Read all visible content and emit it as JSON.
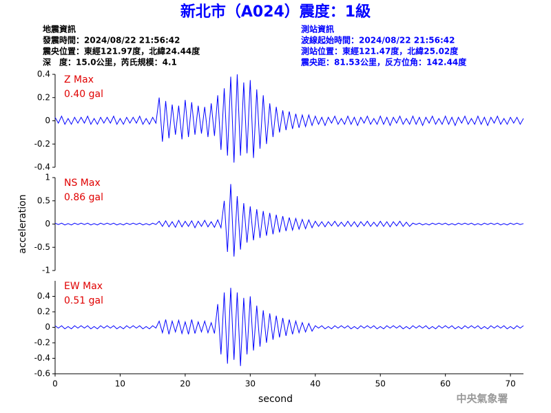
{
  "header": {
    "title": "新北市（A024）震度：1級",
    "left": [
      "地震資訊",
      "發震時間：2024/08/22 21:56:42",
      "震央位置：東經121.97度，北緯24.44度",
      "深　度：15.0公里，芮氏規模：4.1"
    ],
    "right": [
      "測站資訊",
      "波線起始時間：2024/08/22 21:56:42",
      "測站位置：東經121.47度，北緯25.02度",
      "震央距：81.53公里，反方位角：142.44度"
    ],
    "footer": "中央氣象署"
  },
  "chart_data": [
    {
      "type": "line",
      "annotation": "0.40 gal",
      "xlim": [
        0,
        72
      ],
      "ylim": [
        -0.4,
        0.4
      ],
      "yticks": [
        -0.4,
        -0.2,
        0,
        0.2,
        0.4
      ],
      "x": [
        0,
        0.5,
        1,
        1.5,
        2,
        2.5,
        3,
        3.5,
        4,
        4.5,
        5,
        5.5,
        6,
        6.5,
        7,
        7.5,
        8,
        8.5,
        9,
        9.5,
        10,
        10.5,
        11,
        11.5,
        12,
        12.5,
        13,
        13.5,
        14,
        14.5,
        15,
        15.5,
        16,
        16.5,
        17,
        17.5,
        18,
        18.5,
        19,
        19.5,
        20,
        20.5,
        21,
        21.5,
        22,
        22.5,
        23,
        23.5,
        24,
        24.5,
        25,
        25.5,
        26,
        26.5,
        27,
        27.5,
        28,
        28.5,
        29,
        29.5,
        30,
        30.5,
        31,
        31.5,
        32,
        32.5,
        33,
        33.5,
        34,
        34.5,
        35,
        35.5,
        36,
        36.5,
        37,
        37.5,
        38,
        38.5,
        39,
        39.5,
        40,
        40.5,
        41,
        41.5,
        42,
        42.5,
        43,
        43.5,
        44,
        44.5,
        45,
        45.5,
        46,
        46.5,
        47,
        47.5,
        48,
        48.5,
        49,
        49.5,
        50,
        50.5,
        51,
        51.5,
        52,
        52.5,
        53,
        53.5,
        54,
        54.5,
        55,
        55.5,
        56,
        56.5,
        57,
        57.5,
        58,
        58.5,
        59,
        59.5,
        60,
        60.5,
        61,
        61.5,
        62,
        62.5,
        63,
        63.5,
        64,
        64.5,
        65,
        65.5,
        66,
        66.5,
        67,
        67.5,
        68,
        68.5,
        69,
        69.5,
        70,
        70.5,
        71,
        71.5,
        72
      ],
      "series": [
        {
          "name": "Z Max",
          "color": "#0000ff",
          "values": [
            0.03,
            -0.02,
            0.04,
            -0.03,
            0.02,
            -0.03,
            0.03,
            -0.02,
            0.03,
            -0.02,
            0.04,
            -0.03,
            0.02,
            -0.03,
            0.03,
            -0.02,
            0.03,
            -0.02,
            0.04,
            -0.03,
            0.02,
            -0.03,
            0.03,
            -0.02,
            0.03,
            -0.02,
            0.04,
            -0.03,
            0.02,
            -0.03,
            0.03,
            -0.02,
            0.2,
            -0.18,
            0.17,
            -0.15,
            0.14,
            -0.12,
            0.13,
            -0.16,
            0.18,
            -0.14,
            0.16,
            -0.12,
            0.13,
            -0.11,
            0.12,
            -0.14,
            0.15,
            -0.13,
            0.22,
            -0.25,
            0.28,
            -0.3,
            0.38,
            -0.36,
            0.4,
            -0.3,
            0.33,
            -0.28,
            0.35,
            -0.32,
            0.27,
            -0.24,
            0.22,
            -0.2,
            0.15,
            -0.14,
            0.12,
            -0.1,
            0.09,
            -0.08,
            0.08,
            -0.07,
            0.06,
            -0.06,
            0.05,
            -0.05,
            0.05,
            -0.04,
            0.04,
            -0.03,
            0.03,
            -0.04,
            0.03,
            -0.02,
            0.04,
            -0.03,
            0.02,
            -0.03,
            0.04,
            -0.03,
            0.03,
            -0.04,
            0.03,
            -0.02,
            0.04,
            -0.03,
            0.02,
            -0.03,
            0.04,
            -0.03,
            0.03,
            -0.04,
            0.03,
            -0.02,
            0.04,
            -0.03,
            0.02,
            -0.03,
            0.04,
            -0.03,
            0.03,
            -0.04,
            0.03,
            -0.02,
            0.04,
            -0.03,
            0.02,
            -0.03,
            0.04,
            -0.03,
            0.03,
            -0.04,
            0.03,
            -0.02,
            0.04,
            -0.03,
            0.02,
            -0.03,
            0.04,
            -0.03,
            0.03,
            -0.04,
            0.03,
            -0.02,
            0.04,
            -0.03,
            0.02,
            -0.03,
            0.03,
            -0.02,
            0.03,
            -0.03,
            0.02
          ]
        }
      ]
    },
    {
      "type": "line",
      "annotation": "0.86 gal",
      "ylabel": "acceleration",
      "xlim": [
        0,
        72
      ],
      "ylim": [
        -1,
        1
      ],
      "yticks": [
        -1,
        -0.5,
        0,
        0.5,
        1
      ],
      "x": [
        0,
        0.5,
        1,
        1.5,
        2,
        2.5,
        3,
        3.5,
        4,
        4.5,
        5,
        5.5,
        6,
        6.5,
        7,
        7.5,
        8,
        8.5,
        9,
        9.5,
        10,
        10.5,
        11,
        11.5,
        12,
        12.5,
        13,
        13.5,
        14,
        14.5,
        15,
        15.5,
        16,
        16.5,
        17,
        17.5,
        18,
        18.5,
        19,
        19.5,
        20,
        20.5,
        21,
        21.5,
        22,
        22.5,
        23,
        23.5,
        24,
        24.5,
        25,
        25.5,
        26,
        26.5,
        27,
        27.5,
        28,
        28.5,
        29,
        29.5,
        30,
        30.5,
        31,
        31.5,
        32,
        32.5,
        33,
        33.5,
        34,
        34.5,
        35,
        35.5,
        36,
        36.5,
        37,
        37.5,
        38,
        38.5,
        39,
        39.5,
        40,
        40.5,
        41,
        41.5,
        42,
        42.5,
        43,
        43.5,
        44,
        44.5,
        45,
        45.5,
        46,
        46.5,
        47,
        47.5,
        48,
        48.5,
        49,
        49.5,
        50,
        50.5,
        51,
        51.5,
        52,
        52.5,
        53,
        53.5,
        54,
        54.5,
        55,
        55.5,
        56,
        56.5,
        57,
        57.5,
        58,
        58.5,
        59,
        59.5,
        60,
        60.5,
        61,
        61.5,
        62,
        62.5,
        63,
        63.5,
        64,
        64.5,
        65,
        65.5,
        66,
        66.5,
        67,
        67.5,
        68,
        68.5,
        69,
        69.5,
        70,
        70.5,
        71,
        71.5,
        72
      ],
      "series": [
        {
          "name": "NS Max",
          "color": "#0000ff",
          "values": [
            0.02,
            -0.01,
            0.02,
            -0.02,
            0.01,
            -0.02,
            0.02,
            -0.01,
            0.02,
            -0.01,
            0.02,
            -0.02,
            0.01,
            -0.02,
            0.02,
            -0.01,
            0.02,
            -0.01,
            0.02,
            -0.02,
            0.01,
            -0.02,
            0.02,
            -0.01,
            0.02,
            -0.01,
            0.02,
            -0.02,
            0.01,
            -0.02,
            0.02,
            -0.01,
            0.06,
            -0.05,
            0.07,
            -0.06,
            0.05,
            -0.07,
            0.08,
            -0.06,
            0.06,
            -0.05,
            0.07,
            -0.08,
            0.06,
            -0.05,
            0.08,
            -0.06,
            0.05,
            -0.07,
            0.09,
            -0.08,
            0.5,
            -0.6,
            0.86,
            -0.7,
            0.6,
            -0.55,
            0.45,
            -0.4,
            0.38,
            -0.35,
            0.32,
            -0.3,
            0.28,
            -0.25,
            0.24,
            -0.22,
            0.2,
            -0.18,
            0.17,
            -0.15,
            0.14,
            -0.13,
            0.12,
            -0.11,
            0.1,
            -0.1,
            0.09,
            -0.08,
            0.06,
            -0.05,
            0.05,
            -0.06,
            0.05,
            -0.04,
            0.06,
            -0.05,
            0.04,
            -0.05,
            0.06,
            -0.05,
            0.05,
            -0.06,
            0.05,
            -0.04,
            0.06,
            -0.05,
            0.04,
            -0.05,
            0.06,
            -0.05,
            0.05,
            -0.06,
            0.05,
            -0.04,
            0.06,
            -0.05,
            0.04,
            -0.05,
            0.02,
            -0.01,
            0.02,
            -0.02,
            0.01,
            -0.02,
            0.02,
            -0.01,
            0.02,
            -0.01,
            0.02,
            -0.02,
            0.01,
            -0.02,
            0.02,
            -0.01,
            0.02,
            -0.01,
            0.02,
            -0.02,
            0.01,
            -0.02,
            0.02,
            -0.01,
            0.02,
            -0.01,
            0.02,
            -0.02,
            0.01,
            -0.02,
            0.02,
            -0.01,
            0.02,
            -0.01,
            0.01
          ]
        }
      ]
    },
    {
      "type": "line",
      "annotation": "0.51 gal",
      "xlabel": "second",
      "xlim": [
        0,
        72
      ],
      "xticks": [
        0,
        10,
        20,
        30,
        40,
        50,
        60,
        70
      ],
      "ylim": [
        -0.6,
        0.6
      ],
      "yticks": [
        -0.6,
        -0.4,
        -0.2,
        0,
        0.2,
        0.4
      ],
      "x": [
        0,
        0.5,
        1,
        1.5,
        2,
        2.5,
        3,
        3.5,
        4,
        4.5,
        5,
        5.5,
        6,
        6.5,
        7,
        7.5,
        8,
        8.5,
        9,
        9.5,
        10,
        10.5,
        11,
        11.5,
        12,
        12.5,
        13,
        13.5,
        14,
        14.5,
        15,
        15.5,
        16,
        16.5,
        17,
        17.5,
        18,
        18.5,
        19,
        19.5,
        20,
        20.5,
        21,
        21.5,
        22,
        22.5,
        23,
        23.5,
        24,
        24.5,
        25,
        25.5,
        26,
        26.5,
        27,
        27.5,
        28,
        28.5,
        29,
        29.5,
        30,
        30.5,
        31,
        31.5,
        32,
        32.5,
        33,
        33.5,
        34,
        34.5,
        35,
        35.5,
        36,
        36.5,
        37,
        37.5,
        38,
        38.5,
        39,
        39.5,
        40,
        40.5,
        41,
        41.5,
        42,
        42.5,
        43,
        43.5,
        44,
        44.5,
        45,
        45.5,
        46,
        46.5,
        47,
        47.5,
        48,
        48.5,
        49,
        49.5,
        50,
        50.5,
        51,
        51.5,
        52,
        52.5,
        53,
        53.5,
        54,
        54.5,
        55,
        55.5,
        56,
        56.5,
        57,
        57.5,
        58,
        58.5,
        59,
        59.5,
        60,
        60.5,
        61,
        61.5,
        62,
        62.5,
        63,
        63.5,
        64,
        64.5,
        65,
        65.5,
        66,
        66.5,
        67,
        67.5,
        68,
        68.5,
        69,
        69.5,
        70,
        70.5,
        71,
        71.5,
        72
      ],
      "series": [
        {
          "name": "EW Max",
          "color": "#0000ff",
          "values": [
            0.02,
            -0.01,
            0.02,
            -0.02,
            0.01,
            -0.02,
            0.02,
            -0.01,
            0.02,
            -0.01,
            0.02,
            -0.02,
            0.01,
            -0.02,
            0.02,
            -0.01,
            0.02,
            -0.01,
            0.02,
            -0.02,
            0.01,
            -0.02,
            0.02,
            -0.01,
            0.02,
            -0.01,
            0.02,
            -0.02,
            0.01,
            -0.02,
            0.02,
            -0.01,
            0.08,
            -0.07,
            0.1,
            -0.09,
            0.08,
            -0.06,
            0.09,
            -0.08,
            0.07,
            -0.09,
            0.1,
            -0.08,
            0.07,
            -0.06,
            0.08,
            -0.07,
            0.06,
            -0.08,
            0.3,
            -0.35,
            0.45,
            -0.47,
            0.51,
            -0.42,
            0.45,
            -0.5,
            0.38,
            -0.35,
            0.4,
            -0.3,
            0.28,
            -0.25,
            0.22,
            -0.2,
            0.18,
            -0.16,
            0.15,
            -0.13,
            0.12,
            -0.11,
            0.1,
            -0.09,
            0.08,
            -0.07,
            0.06,
            -0.06,
            0.05,
            -0.05,
            0.02,
            -0.01,
            0.02,
            -0.02,
            0.01,
            -0.02,
            0.02,
            -0.01,
            0.02,
            -0.01,
            0.02,
            -0.02,
            0.01,
            -0.02,
            0.02,
            -0.01,
            0.02,
            -0.01,
            0.02,
            -0.02,
            0.01,
            -0.02,
            0.02,
            -0.01,
            0.02,
            -0.01,
            0.02,
            -0.02,
            0.01,
            -0.02,
            0.02,
            -0.01,
            0.02,
            -0.01,
            0.02,
            -0.02,
            0.01,
            -0.02,
            0.02,
            -0.01,
            0.02,
            -0.01,
            0.02,
            -0.02,
            0.01,
            -0.02,
            0.02,
            -0.01,
            0.02,
            -0.01,
            0.02,
            -0.02,
            0.01,
            -0.02,
            0.02,
            -0.01,
            0.02,
            -0.01,
            0.02,
            -0.02,
            0.01,
            -0.02,
            0.02,
            -0.01,
            0.02
          ]
        }
      ]
    }
  ]
}
